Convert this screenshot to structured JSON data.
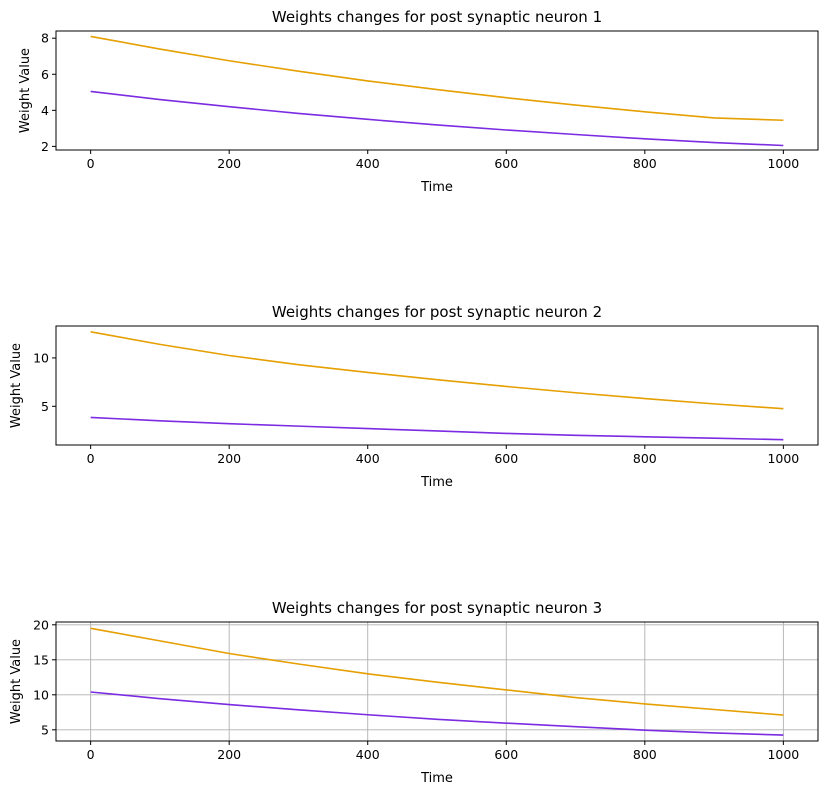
{
  "chart_data": [
    {
      "type": "line",
      "title": "Weights changes for post synaptic neuron 1",
      "xlabel": "Time",
      "ylabel": "Weight Value",
      "xlim": [
        -50,
        1050
      ],
      "ylim": [
        1.8,
        8.4
      ],
      "xticks": [
        0,
        200,
        400,
        600,
        800,
        1000
      ],
      "yticks": [
        2,
        4,
        6,
        8
      ],
      "grid": false,
      "series": [
        {
          "color": "#e69f00",
          "x": [
            0,
            100,
            200,
            300,
            400,
            500,
            600,
            700,
            800,
            900,
            1000
          ],
          "y": [
            8.1,
            7.4,
            6.75,
            6.17,
            5.63,
            5.15,
            4.7,
            4.29,
            3.92,
            3.58,
            3.45
          ]
        },
        {
          "color": "#7b2be2",
          "x": [
            0,
            100,
            200,
            300,
            400,
            500,
            600,
            700,
            800,
            900,
            1000
          ],
          "y": [
            5.05,
            4.6,
            4.2,
            3.83,
            3.5,
            3.19,
            2.91,
            2.66,
            2.42,
            2.21,
            2.05
          ]
        }
      ]
    },
    {
      "type": "line",
      "title": "Weights changes for post synaptic neuron 2",
      "xlabel": "Time",
      "ylabel": "Weight Value",
      "xlim": [
        -50,
        1050
      ],
      "ylim": [
        1.0,
        13.3
      ],
      "xticks": [
        0,
        200,
        400,
        600,
        800,
        1000
      ],
      "yticks": [
        5,
        10
      ],
      "grid": false,
      "series": [
        {
          "color": "#e69f00",
          "x": [
            0,
            100,
            200,
            300,
            400,
            500,
            600,
            700,
            800,
            900,
            1000
          ],
          "y": [
            12.7,
            11.4,
            10.25,
            9.3,
            8.5,
            7.75,
            7.05,
            6.4,
            5.8,
            5.25,
            4.75
          ]
        },
        {
          "color": "#7b2be2",
          "x": [
            0,
            100,
            200,
            300,
            400,
            500,
            600,
            700,
            800,
            900,
            1000
          ],
          "y": [
            3.85,
            3.5,
            3.2,
            2.95,
            2.7,
            2.45,
            2.2,
            2.0,
            1.85,
            1.7,
            1.55
          ]
        }
      ]
    },
    {
      "type": "line",
      "title": "Weights changes for post synaptic neuron 3",
      "xlabel": "Time",
      "ylabel": "Weight Value",
      "xlim": [
        -50,
        1050
      ],
      "ylim": [
        3.4,
        20.4
      ],
      "xticks": [
        0,
        200,
        400,
        600,
        800,
        1000
      ],
      "yticks": [
        5,
        10,
        15,
        20
      ],
      "grid": true,
      "series": [
        {
          "color": "#e69f00",
          "x": [
            0,
            100,
            200,
            300,
            400,
            500,
            600,
            700,
            800,
            900,
            1000
          ],
          "y": [
            19.5,
            17.7,
            15.9,
            14.4,
            13.0,
            11.8,
            10.7,
            9.6,
            8.7,
            7.9,
            7.1
          ]
        },
        {
          "color": "#7b2be2",
          "x": [
            0,
            100,
            200,
            300,
            400,
            500,
            600,
            700,
            800,
            900,
            1000
          ],
          "y": [
            10.4,
            9.45,
            8.6,
            7.85,
            7.15,
            6.5,
            5.95,
            5.45,
            4.95,
            4.55,
            4.25
          ]
        }
      ]
    }
  ]
}
